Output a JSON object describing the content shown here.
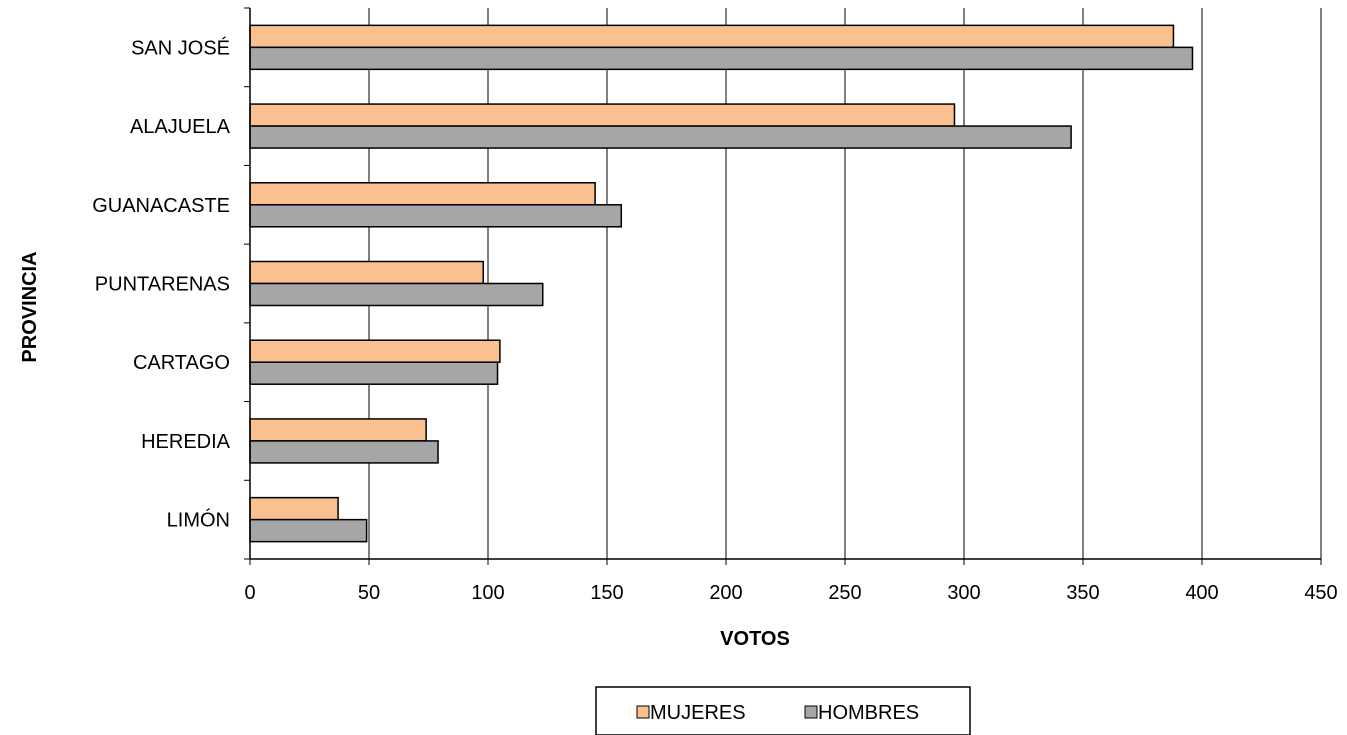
{
  "chart_data": {
    "type": "bar",
    "orientation": "horizontal",
    "categories": [
      "SAN JOSÉ",
      "ALAJUELA",
      "GUANACASTE",
      "PUNTARENAS",
      "CARTAGO",
      "HEREDIA",
      "LIMÓN"
    ],
    "series": [
      {
        "name": "MUJERES",
        "color": "#FAC090",
        "values": [
          388,
          296,
          145,
          98,
          105,
          74,
          37
        ]
      },
      {
        "name": "HOMBRES",
        "color": "#A6A6A6",
        "values": [
          396,
          345,
          156,
          123,
          104,
          79,
          49
        ]
      }
    ],
    "xlabel": "VOTOS",
    "ylabel": "PROVINCIA",
    "xlim": [
      0,
      450
    ],
    "xticks": [
      0,
      50,
      100,
      150,
      200,
      250,
      300,
      350,
      400,
      450
    ],
    "grid": "vertical",
    "legend_position": "bottom"
  }
}
